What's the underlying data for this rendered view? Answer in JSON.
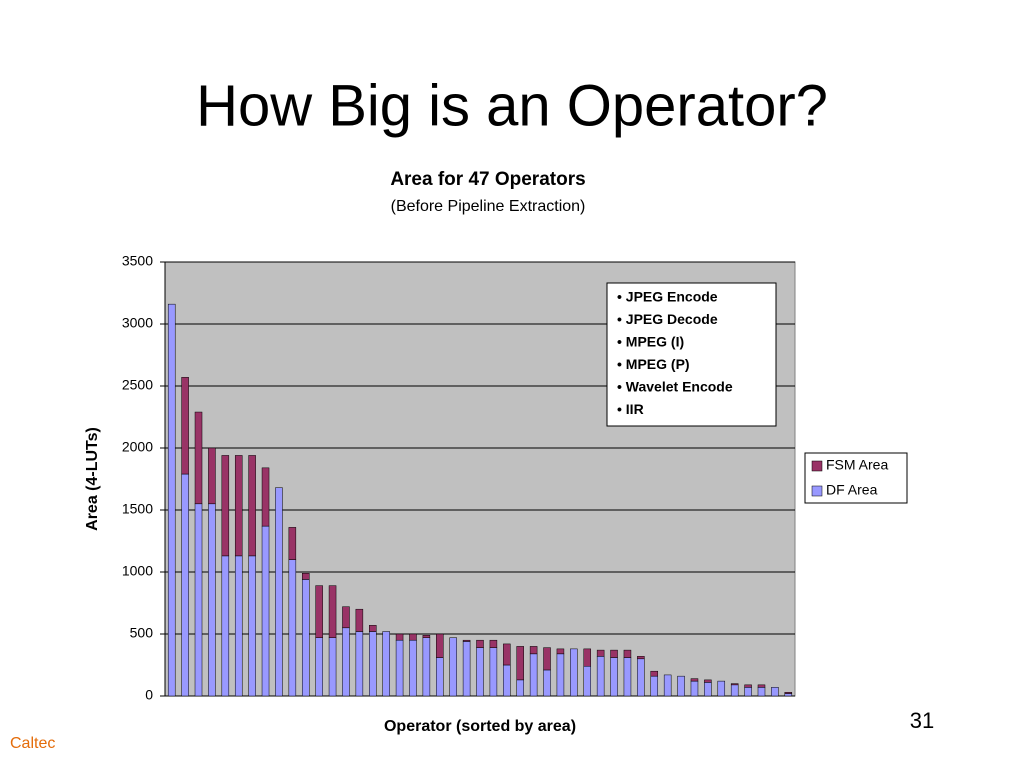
{
  "slide_title": "How Big is an Operator?",
  "page_number": "31",
  "footer": "Caltec",
  "chart_data": {
    "type": "stacked_bar",
    "title": "Area for 47 Operators",
    "subtitle": "(Before Pipeline Extraction)",
    "x_label": "Operator  (sorted by area)",
    "y_label": "Area  (4-LUTs)",
    "annotations": [
      "• JPEG Encode",
      "• JPEG Decode",
      "• MPEG (I)",
      "• MPEG (P)",
      "• Wavelet Encode",
      "• IIR"
    ],
    "categories": [
      null,
      null,
      null,
      null,
      null,
      null,
      null,
      null,
      null,
      null,
      null,
      null,
      null,
      null,
      null,
      null,
      null,
      null,
      null,
      null,
      null,
      null,
      null,
      null,
      null,
      null,
      null,
      null,
      null,
      null,
      null,
      null,
      null,
      null,
      null,
      null,
      null,
      null,
      null,
      null,
      null,
      null,
      null,
      null,
      null,
      null,
      null
    ],
    "series": [
      {
        "name": "DF Area",
        "color": "#9999ff",
        "values": [
          3160,
          1790,
          1550,
          1550,
          1130,
          1130,
          1130,
          1370,
          1680,
          1100,
          940,
          470,
          470,
          550,
          520,
          520,
          520,
          450,
          450,
          470,
          310,
          470,
          440,
          390,
          390,
          250,
          130,
          340,
          210,
          340,
          380,
          240,
          320,
          310,
          310,
          300,
          160,
          170,
          160,
          120,
          110,
          120,
          90,
          70,
          70,
          70,
          20
        ]
      },
      {
        "name": "FSM Area",
        "color": "#993366",
        "values": [
          0,
          780,
          740,
          450,
          810,
          810,
          810,
          470,
          0,
          260,
          50,
          420,
          420,
          170,
          180,
          50,
          0,
          50,
          50,
          20,
          190,
          0,
          10,
          60,
          60,
          170,
          270,
          60,
          180,
          40,
          0,
          140,
          50,
          60,
          60,
          20,
          40,
          0,
          0,
          20,
          20,
          0,
          10,
          20,
          20,
          0,
          10
        ]
      }
    ],
    "ylim": [
      0,
      3500
    ],
    "yticks": [
      0,
      500,
      1000,
      1500,
      2000,
      2500,
      3000,
      3500
    ],
    "grid": true,
    "plot_color": "#c0c0c0",
    "legend": "right"
  }
}
